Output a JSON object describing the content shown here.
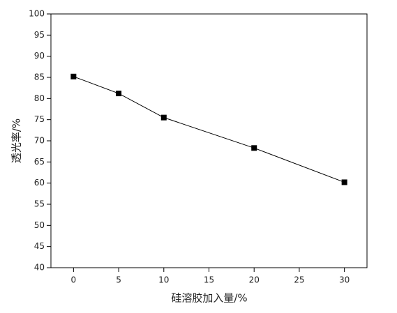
{
  "chart_data": {
    "type": "line",
    "x_label": "硅溶胶加入量/%",
    "y_label": "透光率/%",
    "x": [
      0,
      5,
      10,
      20,
      30
    ],
    "series": [
      {
        "name": "透光率",
        "color": "#000000",
        "values": [
          85.2,
          81.2,
          75.5,
          68.3,
          60.2
        ]
      }
    ],
    "xlim": [
      -2.5,
      32.5
    ],
    "xticks": [
      0,
      5,
      10,
      15,
      20,
      25,
      30
    ],
    "ylim": [
      40,
      100
    ],
    "yticks": [
      40,
      45,
      50,
      55,
      60,
      65,
      70,
      75,
      80,
      85,
      90,
      95,
      100
    ],
    "grid": false,
    "legend": false
  }
}
